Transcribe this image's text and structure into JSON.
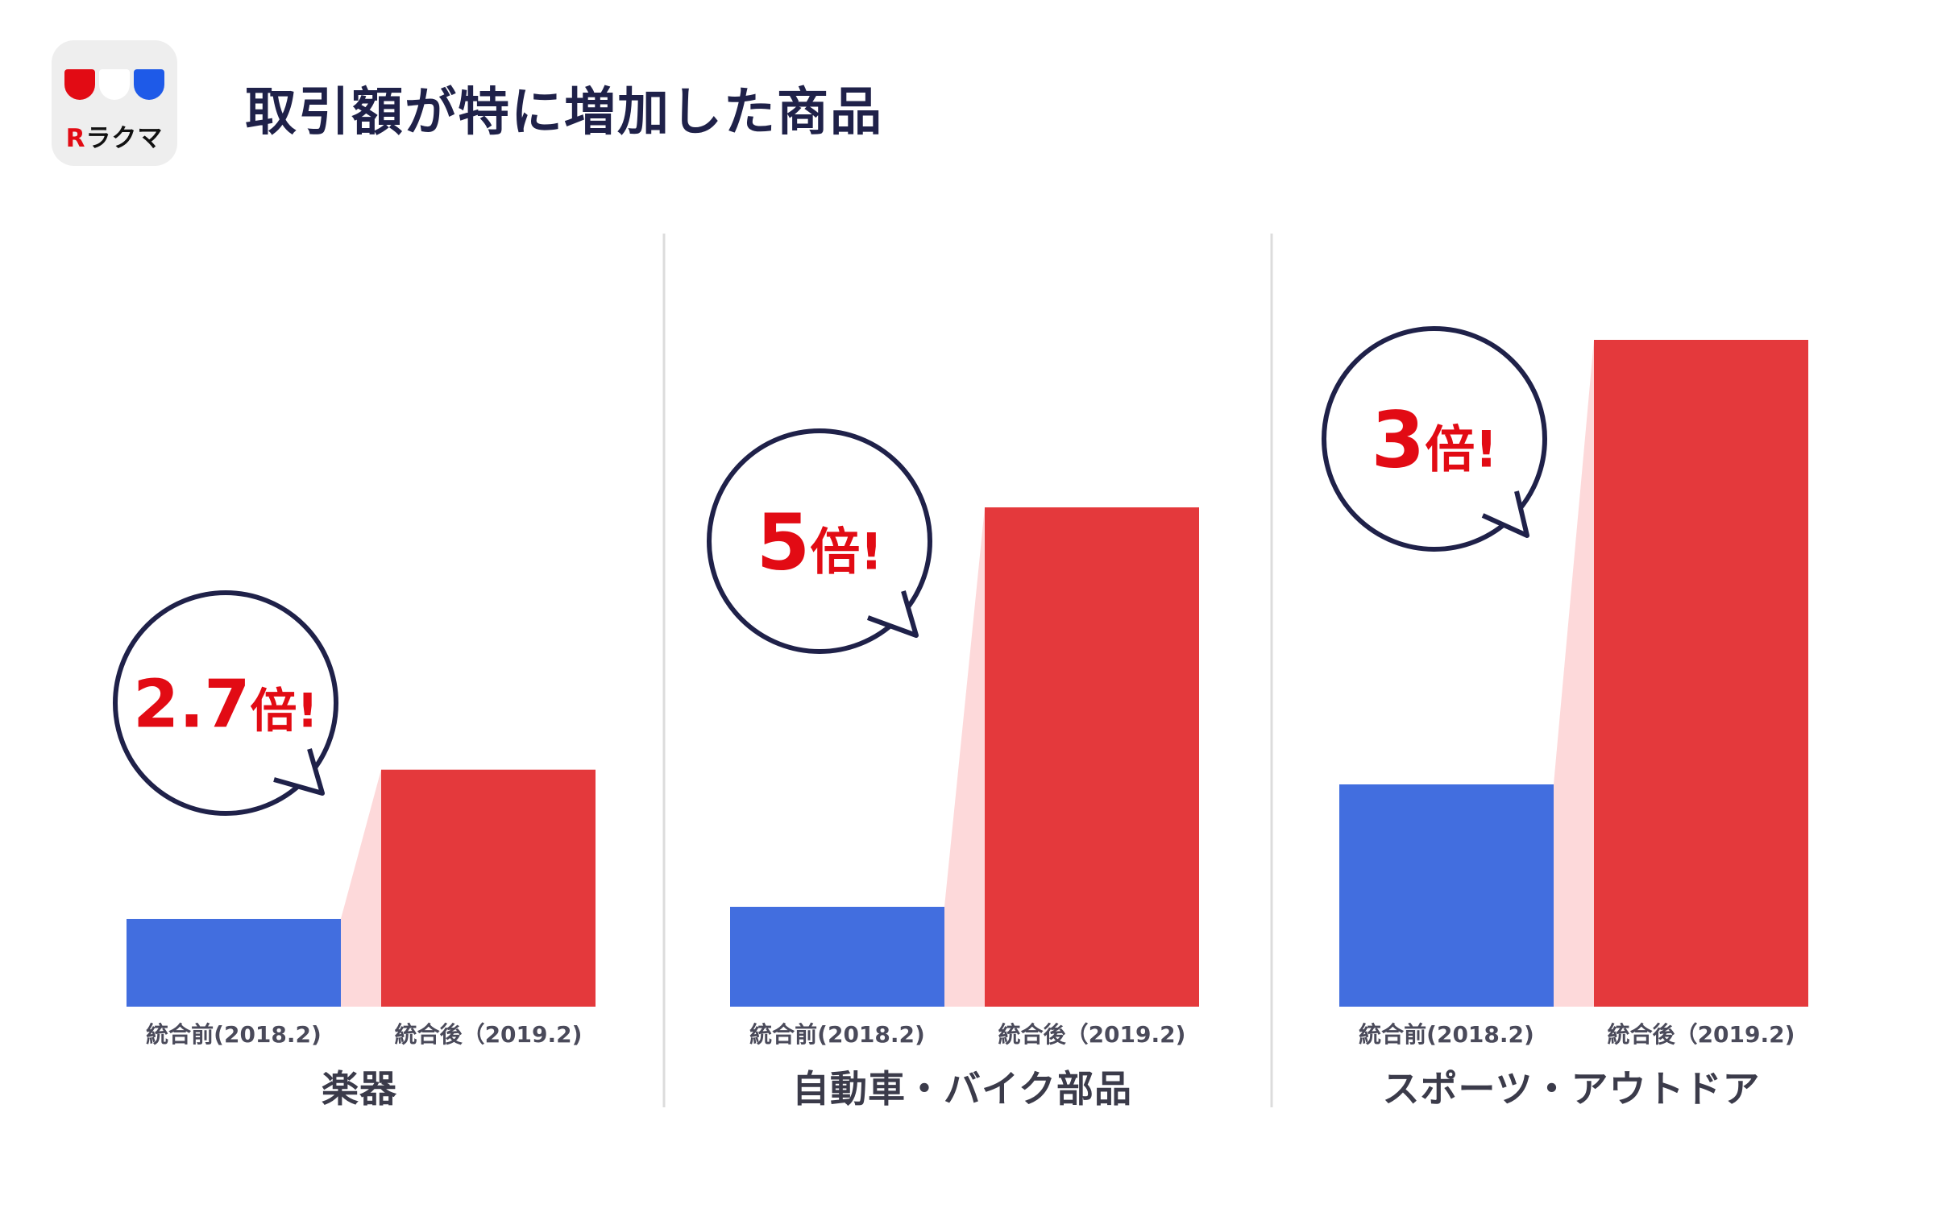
{
  "header": {
    "title": "取引額が特に増加した商品",
    "logo_text": "ラクマ",
    "logo_r": "R"
  },
  "colors": {
    "before": "#426edf",
    "after": "#e4393c",
    "connector": "#fdd9da",
    "bubble_stroke": "#1f2149",
    "ratio_text": "#e20b14",
    "divider": "#dcdcdc",
    "logo_cup_red": "#e20b14",
    "logo_cup_white": "#ffffff",
    "logo_cup_blue": "#1e5ae8"
  },
  "chart_data": {
    "type": "bar",
    "title": "取引額が特に増加した商品",
    "series_labels": [
      "統合前(2018.2)",
      "統合後（2019.2)"
    ],
    "unit_note": "relative transaction value (before = 1)",
    "panels": [
      {
        "category": "楽器",
        "before": 1,
        "after": 2.7,
        "ratio_num": "2.7",
        "ratio_unit": "倍!"
      },
      {
        "category": "自動車・バイク部品",
        "before": 1,
        "after": 5,
        "ratio_num": "5",
        "ratio_unit": "倍!"
      },
      {
        "category": "スポーツ・アウトドア",
        "before": 1,
        "after": 3,
        "ratio_num": "3",
        "ratio_unit": "倍!"
      }
    ],
    "grid": false,
    "legend": "none"
  }
}
